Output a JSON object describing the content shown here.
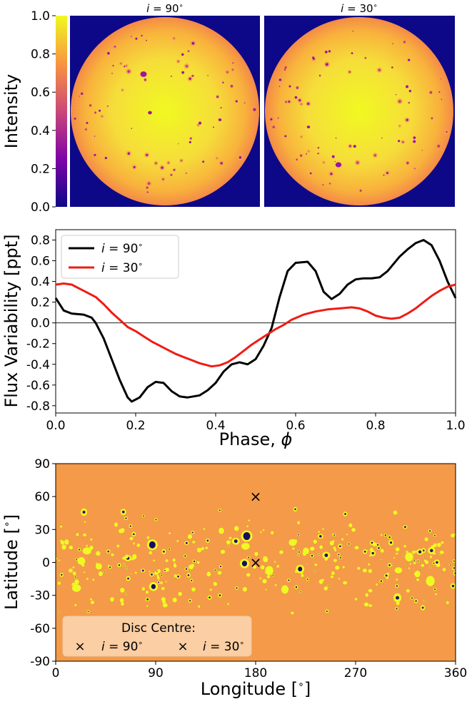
{
  "chart_data": [
    {
      "type": "heatmap",
      "panel": "intensity-discs",
      "colorbar": {
        "label": "Intensity",
        "range": [
          0.0,
          1.0
        ],
        "ticks": [
          "0.0",
          "0.2",
          "0.4",
          "0.6",
          "0.8",
          "1.0"
        ],
        "colormap": "plasma"
      },
      "discs": [
        {
          "title_var": "i",
          "title_eq": " = 90",
          "title_deg": "∘",
          "inclination": 90
        },
        {
          "title_var": "i",
          "title_eq": " = 30",
          "title_deg": "∘",
          "inclination": 30
        }
      ],
      "colors": {
        "background": "#0d0887",
        "limb": "#f48a48",
        "centre": "#f0f921",
        "spot": "#9c179e"
      }
    },
    {
      "type": "line",
      "panel": "light-curve",
      "xlabel_text": "Phase, ",
      "xlabel_sym": "ϕ",
      "ylabel": "Flux Variability [ppt]",
      "xlim": [
        0.0,
        1.0
      ],
      "ylim": [
        -0.87,
        0.9
      ],
      "xticks": [
        "0.0",
        "0.2",
        "0.4",
        "0.6",
        "0.8",
        "1.0"
      ],
      "yticks": [
        "-0.8",
        "-0.6",
        "-0.4",
        "-0.2",
        "0.0",
        "0.2",
        "0.4",
        "0.6",
        "0.8"
      ],
      "xtick_values": [
        0,
        0.2,
        0.4,
        0.6,
        0.8,
        1.0
      ],
      "ytick_values": [
        -0.8,
        -0.6,
        -0.4,
        -0.2,
        0.0,
        0.2,
        0.4,
        0.6,
        0.8
      ],
      "zero_line": true,
      "legend_position": "upper-left",
      "series": [
        {
          "name": "i = 90°",
          "legend_var": "i",
          "legend_eq": " = 90",
          "color": "#000000",
          "points": [
            [
              0.0,
              0.24
            ],
            [
              0.02,
              0.12
            ],
            [
              0.04,
              0.09
            ],
            [
              0.07,
              0.08
            ],
            [
              0.09,
              0.05
            ],
            [
              0.1,
              0.0
            ],
            [
              0.12,
              -0.15
            ],
            [
              0.14,
              -0.35
            ],
            [
              0.16,
              -0.55
            ],
            [
              0.18,
              -0.72
            ],
            [
              0.19,
              -0.76
            ],
            [
              0.21,
              -0.72
            ],
            [
              0.23,
              -0.62
            ],
            [
              0.25,
              -0.57
            ],
            [
              0.27,
              -0.58
            ],
            [
              0.29,
              -0.66
            ],
            [
              0.31,
              -0.71
            ],
            [
              0.33,
              -0.72
            ],
            [
              0.36,
              -0.7
            ],
            [
              0.38,
              -0.65
            ],
            [
              0.4,
              -0.58
            ],
            [
              0.42,
              -0.47
            ],
            [
              0.44,
              -0.4
            ],
            [
              0.46,
              -0.38
            ],
            [
              0.48,
              -0.4
            ],
            [
              0.5,
              -0.35
            ],
            [
              0.52,
              -0.22
            ],
            [
              0.54,
              -0.05
            ],
            [
              0.56,
              0.25
            ],
            [
              0.58,
              0.5
            ],
            [
              0.6,
              0.58
            ],
            [
              0.63,
              0.59
            ],
            [
              0.65,
              0.5
            ],
            [
              0.67,
              0.3
            ],
            [
              0.69,
              0.23
            ],
            [
              0.71,
              0.28
            ],
            [
              0.73,
              0.37
            ],
            [
              0.75,
              0.42
            ],
            [
              0.77,
              0.43
            ],
            [
              0.79,
              0.43
            ],
            [
              0.81,
              0.44
            ],
            [
              0.83,
              0.5
            ],
            [
              0.86,
              0.64
            ],
            [
              0.88,
              0.71
            ],
            [
              0.9,
              0.77
            ],
            [
              0.92,
              0.8
            ],
            [
              0.94,
              0.75
            ],
            [
              0.96,
              0.6
            ],
            [
              0.98,
              0.4
            ],
            [
              1.0,
              0.24
            ]
          ]
        },
        {
          "name": "i = 30°",
          "legend_var": "i",
          "legend_eq": " = 30",
          "color": "#ee1c14",
          "points": [
            [
              0.0,
              0.37
            ],
            [
              0.02,
              0.38
            ],
            [
              0.04,
              0.37
            ],
            [
              0.06,
              0.33
            ],
            [
              0.08,
              0.29
            ],
            [
              0.1,
              0.25
            ],
            [
              0.12,
              0.18
            ],
            [
              0.14,
              0.1
            ],
            [
              0.16,
              0.03
            ],
            [
              0.18,
              -0.04
            ],
            [
              0.2,
              -0.08
            ],
            [
              0.22,
              -0.13
            ],
            [
              0.24,
              -0.18
            ],
            [
              0.26,
              -0.22
            ],
            [
              0.28,
              -0.26
            ],
            [
              0.3,
              -0.3
            ],
            [
              0.32,
              -0.33
            ],
            [
              0.34,
              -0.36
            ],
            [
              0.36,
              -0.39
            ],
            [
              0.38,
              -0.41
            ],
            [
              0.39,
              -0.42
            ],
            [
              0.41,
              -0.41
            ],
            [
              0.43,
              -0.38
            ],
            [
              0.45,
              -0.33
            ],
            [
              0.47,
              -0.27
            ],
            [
              0.49,
              -0.21
            ],
            [
              0.51,
              -0.16
            ],
            [
              0.53,
              -0.11
            ],
            [
              0.55,
              -0.06
            ],
            [
              0.57,
              -0.02
            ],
            [
              0.59,
              0.03
            ],
            [
              0.62,
              0.08
            ],
            [
              0.65,
              0.11
            ],
            [
              0.68,
              0.13
            ],
            [
              0.71,
              0.14
            ],
            [
              0.74,
              0.15
            ],
            [
              0.76,
              0.14
            ],
            [
              0.78,
              0.11
            ],
            [
              0.8,
              0.07
            ],
            [
              0.82,
              0.05
            ],
            [
              0.84,
              0.04
            ],
            [
              0.86,
              0.05
            ],
            [
              0.88,
              0.09
            ],
            [
              0.9,
              0.14
            ],
            [
              0.92,
              0.2
            ],
            [
              0.94,
              0.26
            ],
            [
              0.96,
              0.31
            ],
            [
              0.98,
              0.35
            ],
            [
              1.0,
              0.37
            ]
          ]
        }
      ]
    },
    {
      "type": "scatter",
      "panel": "spot-map",
      "xlabel_text": "Longitude [",
      "xlabel_deg": "∘",
      "xlabel_end": "]",
      "ylabel_text": "Latitude [",
      "ylabel_deg": "∘",
      "ylabel_end": "]",
      "xlim": [
        0,
        360
      ],
      "ylim": [
        -90,
        90
      ],
      "xticks": [
        "0",
        "90",
        "180",
        "270",
        "360"
      ],
      "xtick_values": [
        0,
        90,
        180,
        270,
        360
      ],
      "yticks": [
        "-90",
        "-60",
        "-30",
        "0",
        "30",
        "60",
        "90"
      ],
      "ytick_values": [
        -90,
        -60,
        -30,
        0,
        30,
        60,
        90
      ],
      "background_color": "#f49a48",
      "spot_color": "#f0f921",
      "legend_title": "Disc Centre:",
      "legend_position": "lower-left",
      "markers": [
        {
          "name": "i = 90°",
          "legend_var": "i",
          "legend_eq": " = 90",
          "lon": 180,
          "lat": 0,
          "color": "#000000",
          "symbol": "×"
        },
        {
          "name": "i = 30°",
          "legend_var": "i",
          "legend_eq": " = 30",
          "lon": 180,
          "lat": 60,
          "color": "#ee1c14",
          "symbol": "×"
        }
      ]
    }
  ]
}
